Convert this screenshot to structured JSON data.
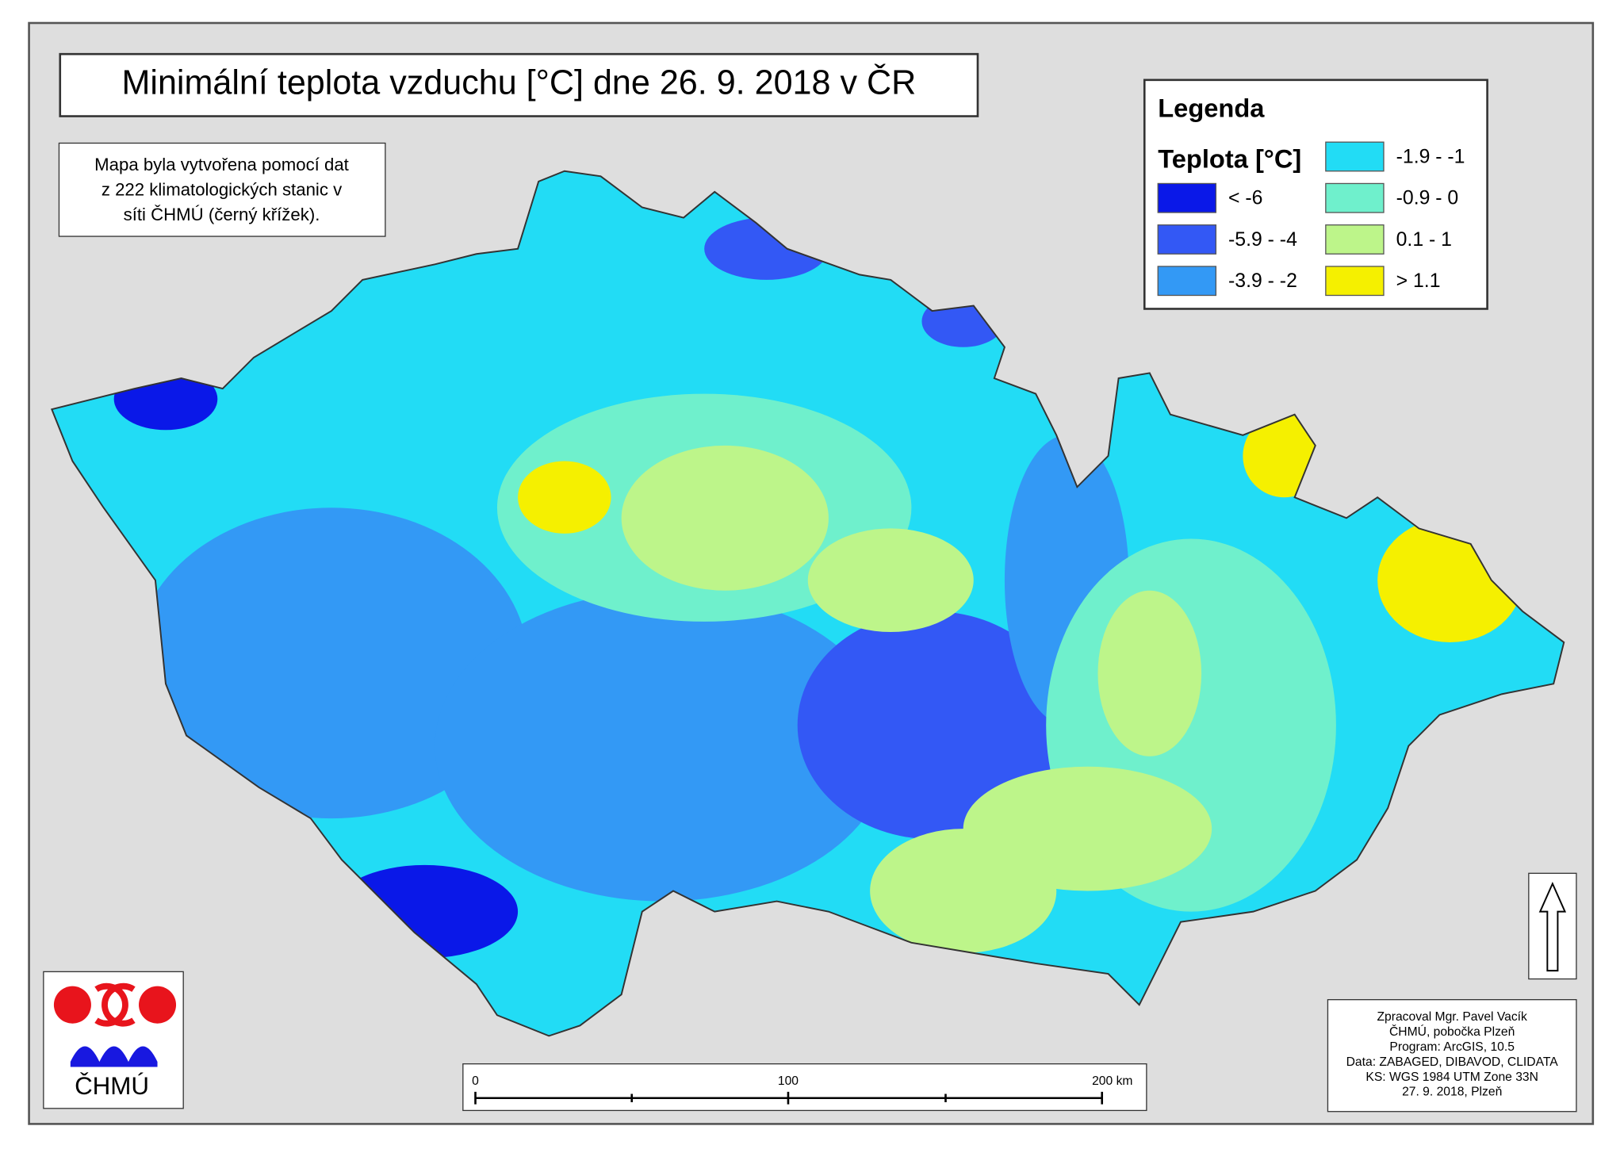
{
  "header": {
    "title": "Minimální teplota vzduchu [°C] dne 26. 9. 2018 v ČR"
  },
  "note": {
    "lines": [
      "Mapa byla vytvořena pomocí dat",
      "z 222 klimatologických stanic v",
      "síti ČHMÚ (černý křížek)."
    ]
  },
  "legend": {
    "title": "Legenda",
    "heading": "Teplota [°C]",
    "items": [
      {
        "label": "< -6",
        "color": "#0a18e8"
      },
      {
        "label": "-5.9 - -4",
        "color": "#3358f5"
      },
      {
        "label": "-3.9 - -2",
        "color": "#3399f5"
      },
      {
        "label": "-1.9 - -1",
        "color": "#22dcf5"
      },
      {
        "label": "-0.9 - 0",
        "color": "#6ff0cc"
      },
      {
        "label": "0.1 - 1",
        "color": "#bdf58a"
      },
      {
        "label": "> 1.1",
        "color": "#f5f000"
      }
    ]
  },
  "scale_bar": {
    "labels": [
      "0",
      "100",
      "200 km"
    ]
  },
  "logo": {
    "text": "ČHMÚ"
  },
  "credits": {
    "lines": [
      "Zpracoval Mgr. Pavel Vacík",
      "ČHMÚ, pobočka Plzeň",
      "Program: ArcGIS, 10.5",
      "Data: ZABAGED, DIBAVOD, CLIDATA",
      "KS: WGS 1984 UTM Zone 33N",
      "27. 9. 2018, Plzeň"
    ]
  }
}
